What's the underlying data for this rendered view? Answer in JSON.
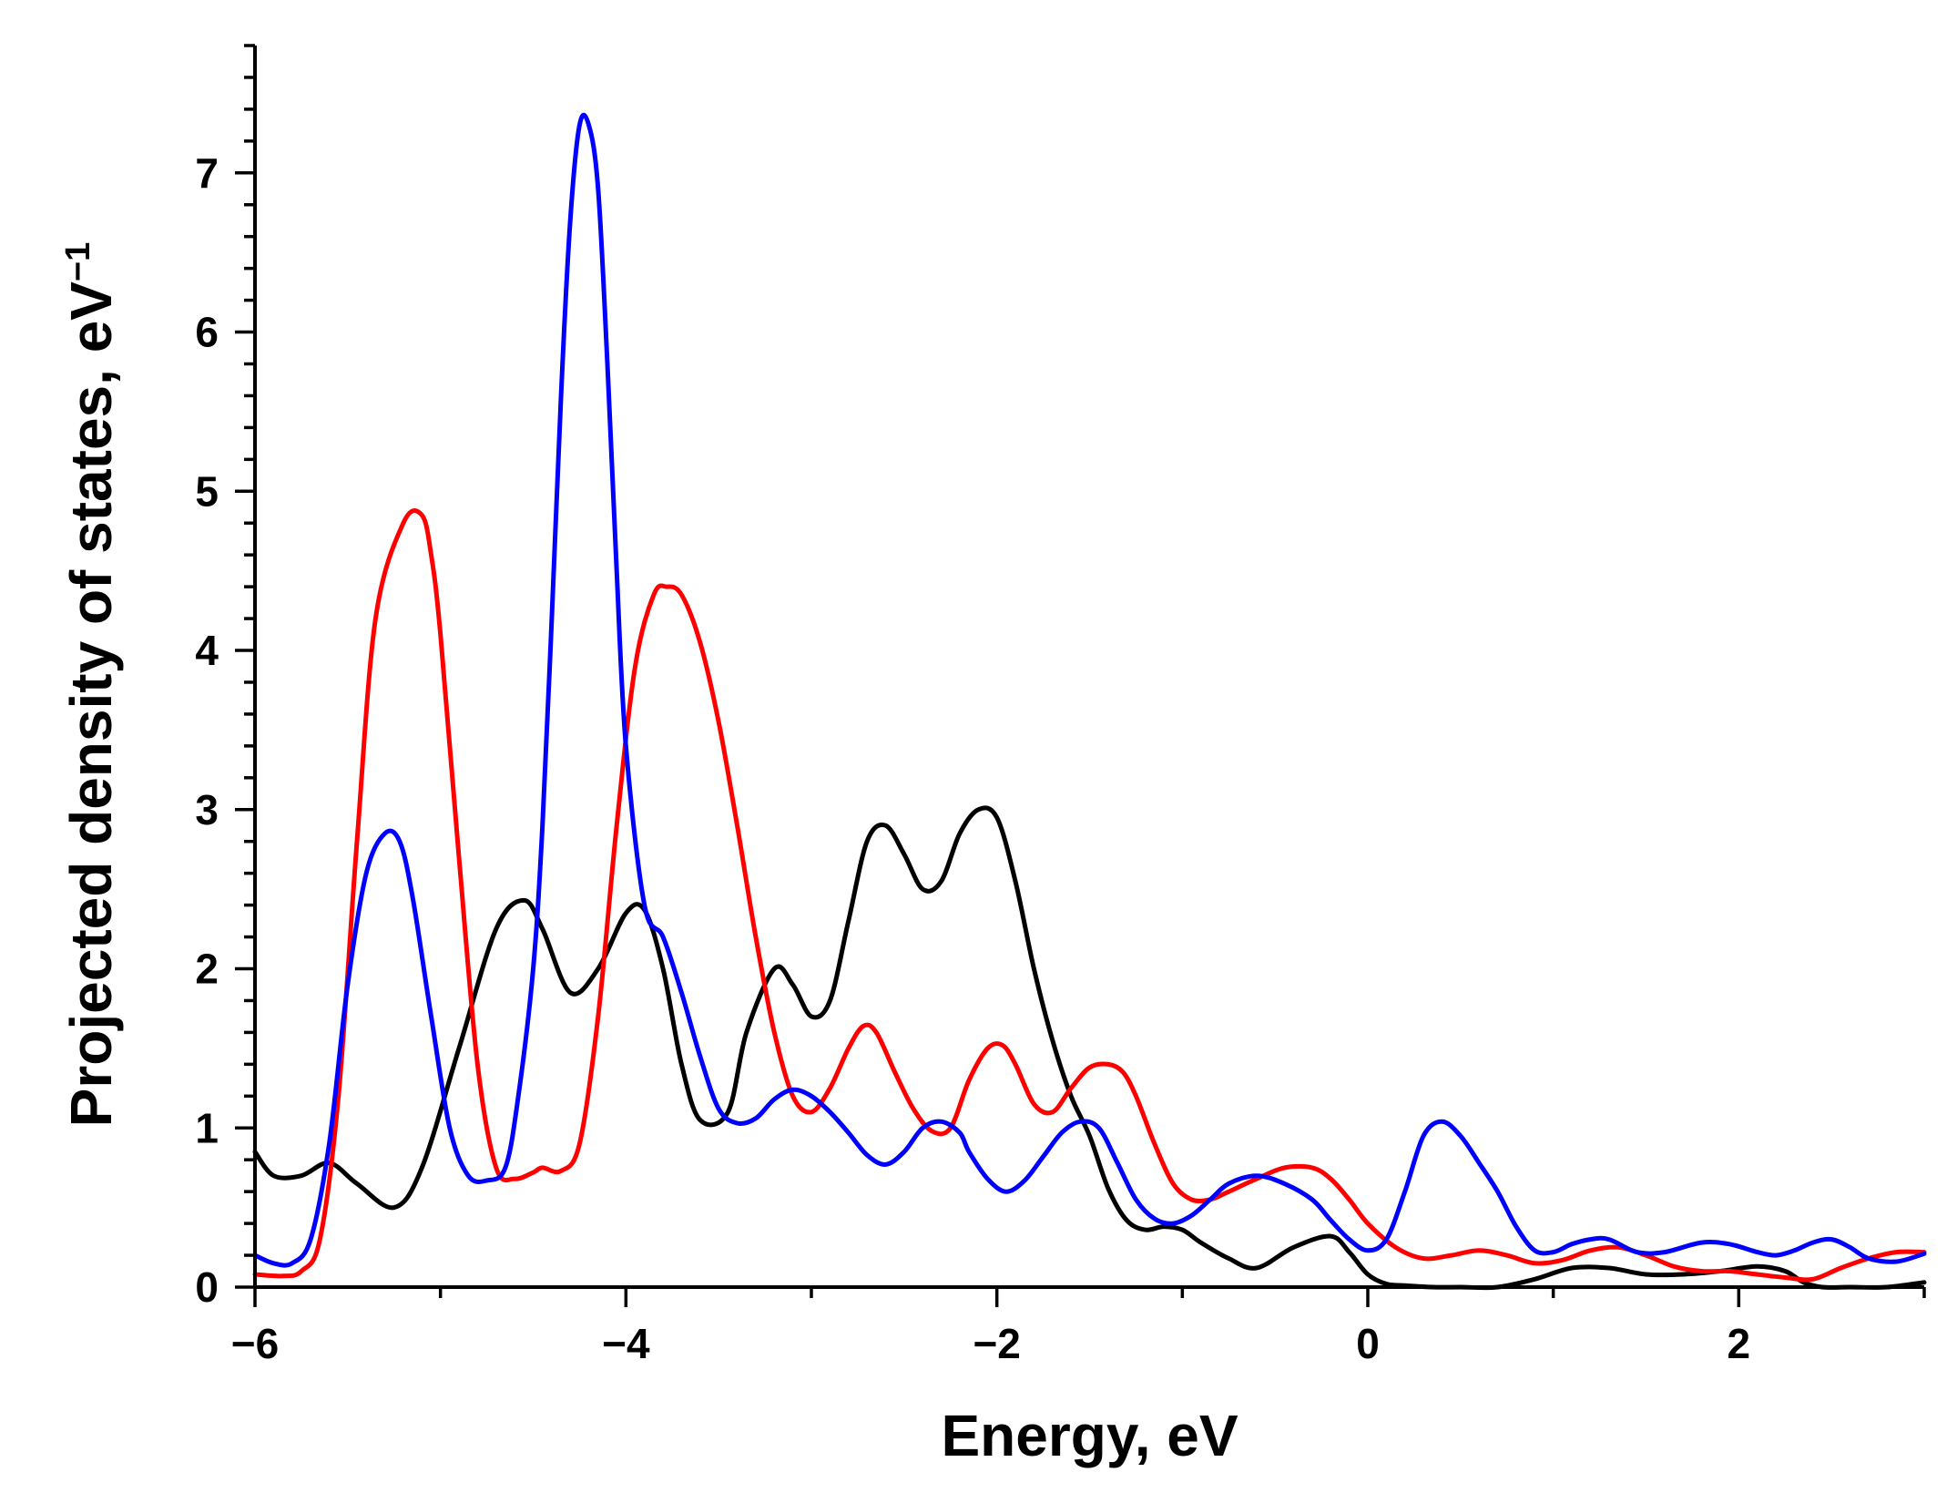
{
  "chart_data": {
    "type": "line",
    "title": "",
    "xlabel": "Energy, eV",
    "ylabel": "Projected density of states, eV",
    "ylabel_superscript": "−1",
    "xlim": [
      -6,
      3
    ],
    "ylim": [
      0,
      7.8
    ],
    "x_ticks": [
      {
        "value": -6,
        "label": "−6"
      },
      {
        "value": -4,
        "label": "−4"
      },
      {
        "value": -2,
        "label": "−2"
      },
      {
        "value": 0,
        "label": "0"
      },
      {
        "value": 2,
        "label": "2"
      }
    ],
    "x_minor_step": 1,
    "y_ticks": [
      {
        "value": 0,
        "label": "0"
      },
      {
        "value": 1,
        "label": "1"
      },
      {
        "value": 2,
        "label": "2"
      },
      {
        "value": 3,
        "label": "3"
      },
      {
        "value": 4,
        "label": "4"
      },
      {
        "value": 5,
        "label": "5"
      },
      {
        "value": 6,
        "label": "6"
      },
      {
        "value": 7,
        "label": "7"
      }
    ],
    "y_minor_step": 0.2,
    "grid": false,
    "series": [
      {
        "name": "black",
        "color": "#000000",
        "x": [
          -6.0,
          -5.9,
          -5.75,
          -5.6,
          -5.45,
          -5.25,
          -5.1,
          -4.9,
          -4.7,
          -4.55,
          -4.45,
          -4.3,
          -4.15,
          -4.0,
          -3.9,
          -3.8,
          -3.7,
          -3.6,
          -3.45,
          -3.35,
          -3.2,
          -3.1,
          -3.0,
          -2.9,
          -2.8,
          -2.7,
          -2.6,
          -2.5,
          -2.4,
          -2.3,
          -2.2,
          -2.1,
          -2.0,
          -1.9,
          -1.8,
          -1.7,
          -1.6,
          -1.5,
          -1.4,
          -1.3,
          -1.2,
          -1.1,
          -1.0,
          -0.9,
          -0.75,
          -0.6,
          -0.4,
          -0.2,
          -0.1,
          0.0,
          0.1,
          0.2,
          0.35,
          0.5,
          0.7,
          0.9,
          1.1,
          1.3,
          1.5,
          1.7,
          1.9,
          2.1,
          2.25,
          2.35,
          2.45,
          2.6,
          2.8,
          3.0
        ],
        "y": [
          0.85,
          0.7,
          0.7,
          0.78,
          0.65,
          0.5,
          0.75,
          1.5,
          2.25,
          2.43,
          2.25,
          1.85,
          2.0,
          2.35,
          2.37,
          2.0,
          1.4,
          1.05,
          1.1,
          1.6,
          2.0,
          1.9,
          1.7,
          1.8,
          2.3,
          2.8,
          2.9,
          2.72,
          2.5,
          2.55,
          2.85,
          3.0,
          2.95,
          2.55,
          2.0,
          1.55,
          1.2,
          0.95,
          0.62,
          0.42,
          0.36,
          0.38,
          0.36,
          0.28,
          0.18,
          0.12,
          0.25,
          0.32,
          0.22,
          0.08,
          0.02,
          0.01,
          0.0,
          0.0,
          0.0,
          0.05,
          0.12,
          0.12,
          0.08,
          0.08,
          0.1,
          0.13,
          0.1,
          0.03,
          0.0,
          0.0,
          0.0,
          0.03
        ]
      },
      {
        "name": "red",
        "color": "#ff0000",
        "x": [
          -6.0,
          -5.85,
          -5.75,
          -5.65,
          -5.55,
          -5.45,
          -5.35,
          -5.2,
          -5.1,
          -5.05,
          -5.0,
          -4.9,
          -4.8,
          -4.7,
          -4.6,
          -4.5,
          -4.45,
          -4.35,
          -4.25,
          -4.15,
          -4.05,
          -3.95,
          -3.85,
          -3.78,
          -3.7,
          -3.6,
          -3.5,
          -3.4,
          -3.3,
          -3.2,
          -3.1,
          -3.0,
          -2.9,
          -2.8,
          -2.72,
          -2.65,
          -2.55,
          -2.45,
          -2.35,
          -2.25,
          -2.15,
          -2.05,
          -1.97,
          -1.9,
          -1.8,
          -1.7,
          -1.6,
          -1.5,
          -1.4,
          -1.32,
          -1.25,
          -1.15,
          -1.05,
          -0.95,
          -0.85,
          -0.75,
          -0.6,
          -0.45,
          -0.3,
          -0.2,
          -0.1,
          0.0,
          0.15,
          0.3,
          0.45,
          0.6,
          0.75,
          0.9,
          1.05,
          1.2,
          1.35,
          1.5,
          1.65,
          1.8,
          1.95,
          2.1,
          2.25,
          2.4,
          2.55,
          2.7,
          2.85,
          3.0
        ],
        "y": [
          0.08,
          0.07,
          0.1,
          0.3,
          1.2,
          2.8,
          4.2,
          4.8,
          4.85,
          4.6,
          4.1,
          2.7,
          1.4,
          0.75,
          0.68,
          0.72,
          0.75,
          0.73,
          0.9,
          1.7,
          2.9,
          3.9,
          4.35,
          4.4,
          4.35,
          4.05,
          3.55,
          2.9,
          2.2,
          1.6,
          1.2,
          1.1,
          1.25,
          1.5,
          1.64,
          1.6,
          1.35,
          1.12,
          0.98,
          1.0,
          1.3,
          1.5,
          1.52,
          1.4,
          1.15,
          1.1,
          1.25,
          1.38,
          1.4,
          1.35,
          1.2,
          0.9,
          0.65,
          0.55,
          0.55,
          0.6,
          0.68,
          0.75,
          0.75,
          0.68,
          0.55,
          0.4,
          0.25,
          0.18,
          0.2,
          0.23,
          0.2,
          0.15,
          0.17,
          0.23,
          0.25,
          0.2,
          0.13,
          0.1,
          0.1,
          0.08,
          0.06,
          0.05,
          0.12,
          0.18,
          0.22,
          0.22
        ]
      },
      {
        "name": "blue",
        "color": "#0000ff",
        "x": [
          -6.0,
          -5.9,
          -5.8,
          -5.7,
          -5.6,
          -5.5,
          -5.4,
          -5.3,
          -5.22,
          -5.15,
          -5.05,
          -4.95,
          -4.85,
          -4.75,
          -4.65,
          -4.58,
          -4.5,
          -4.45,
          -4.4,
          -4.35,
          -4.3,
          -4.25,
          -4.2,
          -4.15,
          -4.1,
          -4.05,
          -4.0,
          -3.9,
          -3.8,
          -3.7,
          -3.6,
          -3.5,
          -3.4,
          -3.3,
          -3.2,
          -3.1,
          -3.0,
          -2.9,
          -2.8,
          -2.7,
          -2.6,
          -2.5,
          -2.4,
          -2.3,
          -2.2,
          -2.15,
          -2.05,
          -1.95,
          -1.85,
          -1.75,
          -1.65,
          -1.55,
          -1.45,
          -1.35,
          -1.25,
          -1.15,
          -1.05,
          -0.95,
          -0.85,
          -0.75,
          -0.6,
          -0.45,
          -0.3,
          -0.2,
          -0.1,
          0.0,
          0.1,
          0.2,
          0.3,
          0.4,
          0.5,
          0.6,
          0.7,
          0.8,
          0.9,
          1.0,
          1.1,
          1.2,
          1.3,
          1.45,
          1.6,
          1.8,
          1.95,
          2.1,
          2.2,
          2.3,
          2.4,
          2.5,
          2.6,
          2.7,
          2.85,
          3.0
        ],
        "y": [
          0.2,
          0.15,
          0.15,
          0.3,
          0.9,
          1.9,
          2.6,
          2.85,
          2.8,
          2.45,
          1.7,
          1.0,
          0.7,
          0.67,
          0.75,
          1.2,
          2.0,
          2.9,
          4.2,
          5.6,
          6.7,
          7.3,
          7.3,
          6.9,
          5.8,
          4.5,
          3.4,
          2.4,
          2.2,
          1.85,
          1.45,
          1.12,
          1.03,
          1.06,
          1.18,
          1.24,
          1.2,
          1.1,
          0.97,
          0.83,
          0.77,
          0.85,
          1.0,
          1.04,
          0.97,
          0.85,
          0.68,
          0.6,
          0.67,
          0.82,
          0.97,
          1.04,
          1.0,
          0.78,
          0.55,
          0.43,
          0.4,
          0.45,
          0.55,
          0.65,
          0.7,
          0.65,
          0.55,
          0.42,
          0.3,
          0.23,
          0.3,
          0.6,
          0.95,
          1.04,
          0.95,
          0.78,
          0.6,
          0.38,
          0.23,
          0.22,
          0.27,
          0.3,
          0.3,
          0.22,
          0.22,
          0.28,
          0.27,
          0.22,
          0.2,
          0.23,
          0.28,
          0.3,
          0.25,
          0.18,
          0.16,
          0.21
        ]
      }
    ]
  }
}
